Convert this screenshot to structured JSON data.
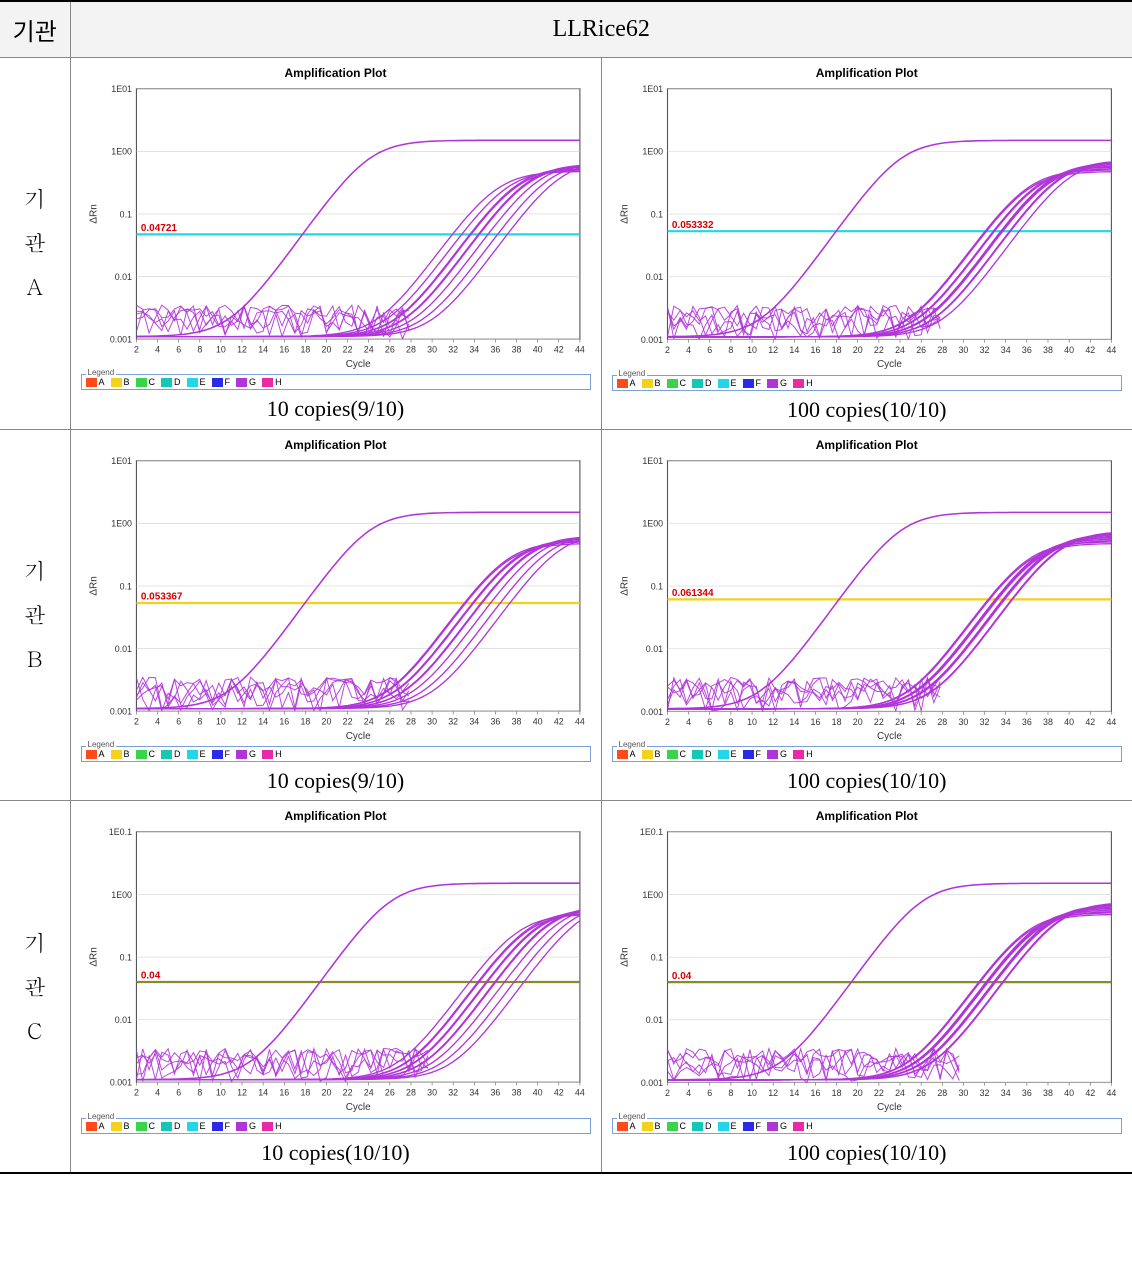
{
  "header": {
    "col1": "기관",
    "col2": "LLRice62"
  },
  "legend": {
    "title": "Legend",
    "items": [
      {
        "label": "A",
        "color": "#ff4a1a"
      },
      {
        "label": "B",
        "color": "#f2d21a"
      },
      {
        "label": "C",
        "color": "#39d44a"
      },
      {
        "label": "D",
        "color": "#15c7b5"
      },
      {
        "label": "E",
        "color": "#21d6e8"
      },
      {
        "label": "F",
        "color": "#2a2ae8"
      },
      {
        "label": "G",
        "color": "#b035d8"
      },
      {
        "label": "H",
        "color": "#e82aa8"
      }
    ]
  },
  "plot_common": {
    "title": "Amplification Plot",
    "ylabel": "ΔRn",
    "xlabel": "Cycle",
    "curve_color": "#b035d8",
    "bg_color": "#ffffff",
    "grid_color": "#d0d0d0",
    "axis_color": "#555555",
    "text_color": "#333333",
    "font_family": "Arial",
    "tick_fontsize": 8,
    "label_fontsize": 9,
    "title_fontsize": 12,
    "threshold_label_color": "#d80000"
  },
  "rows": [
    {
      "label": "기\n관\nA",
      "threshold_color": "#21d6e8",
      "ylim": [
        0.001,
        10
      ],
      "yticks": [
        0.001,
        0.01,
        0.1,
        1,
        10
      ],
      "ytick_labels": [
        "0.001",
        "0.01",
        "0.1",
        "1E00",
        "1E01"
      ],
      "xlim": [
        2,
        44
      ],
      "xtick_step": 2,
      "cells": [
        {
          "caption": "10 copies(9/10)",
          "threshold": 0.04721,
          "threshold_label": "0.04721",
          "early_start": 18,
          "late_starts": [
            30,
            31,
            32,
            32,
            33,
            33,
            34,
            35,
            36
          ],
          "noise_seed": 11
        },
        {
          "caption": "100 copies(10/10)",
          "threshold": 0.053332,
          "threshold_label": "0.053332",
          "early_start": 18,
          "late_starts": [
            30,
            30,
            31,
            31,
            32,
            32,
            32,
            33,
            33,
            34
          ],
          "noise_seed": 12
        }
      ]
    },
    {
      "label": "기\n관\nB",
      "threshold_color": "#f2d21a",
      "ylim": [
        0.001,
        10
      ],
      "yticks": [
        0.001,
        0.01,
        0.1,
        1,
        10
      ],
      "ytick_labels": [
        "0.001",
        "0.01",
        "0.1",
        "1E00",
        "1E01"
      ],
      "xlim": [
        2,
        44
      ],
      "xtick_step": 2,
      "cells": [
        {
          "caption": "10 copies(9/10)",
          "threshold": 0.053367,
          "threshold_label": "0.053367",
          "early_start": 18,
          "late_starts": [
            31,
            31,
            32,
            32,
            33,
            33,
            34,
            35,
            36
          ],
          "noise_seed": 21
        },
        {
          "caption": "100 copies(10/10)",
          "threshold": 0.061344,
          "threshold_label": "0.061344",
          "early_start": 18,
          "late_starts": [
            30,
            30,
            31,
            31,
            31,
            32,
            32,
            32,
            33,
            33
          ],
          "noise_seed": 22
        }
      ]
    },
    {
      "label": "기\n관\nC",
      "threshold_color": "#8a8a2a",
      "ylim": [
        0.001,
        10.1
      ],
      "yticks": [
        0.001,
        0.01,
        0.1,
        1,
        10.1
      ],
      "ytick_labels": [
        "0.001",
        "0.01",
        "0.1",
        "1E00",
        "1E0.1"
      ],
      "xlim": [
        2,
        44
      ],
      "xtick_step": 2,
      "cells": [
        {
          "caption": "10 copies(10/10)",
          "threshold": 0.04,
          "threshold_label": "0.04",
          "early_start": 20,
          "late_starts": [
            32,
            33,
            33,
            34,
            34,
            35,
            35,
            36,
            37,
            38
          ],
          "noise_seed": 31
        },
        {
          "caption": "100 copies(10/10)",
          "threshold": 0.04,
          "threshold_label": "0.04",
          "early_start": 20,
          "late_starts": [
            30,
            30,
            31,
            31,
            31,
            32,
            32,
            32,
            33,
            33
          ],
          "noise_seed": 32
        }
      ]
    }
  ]
}
